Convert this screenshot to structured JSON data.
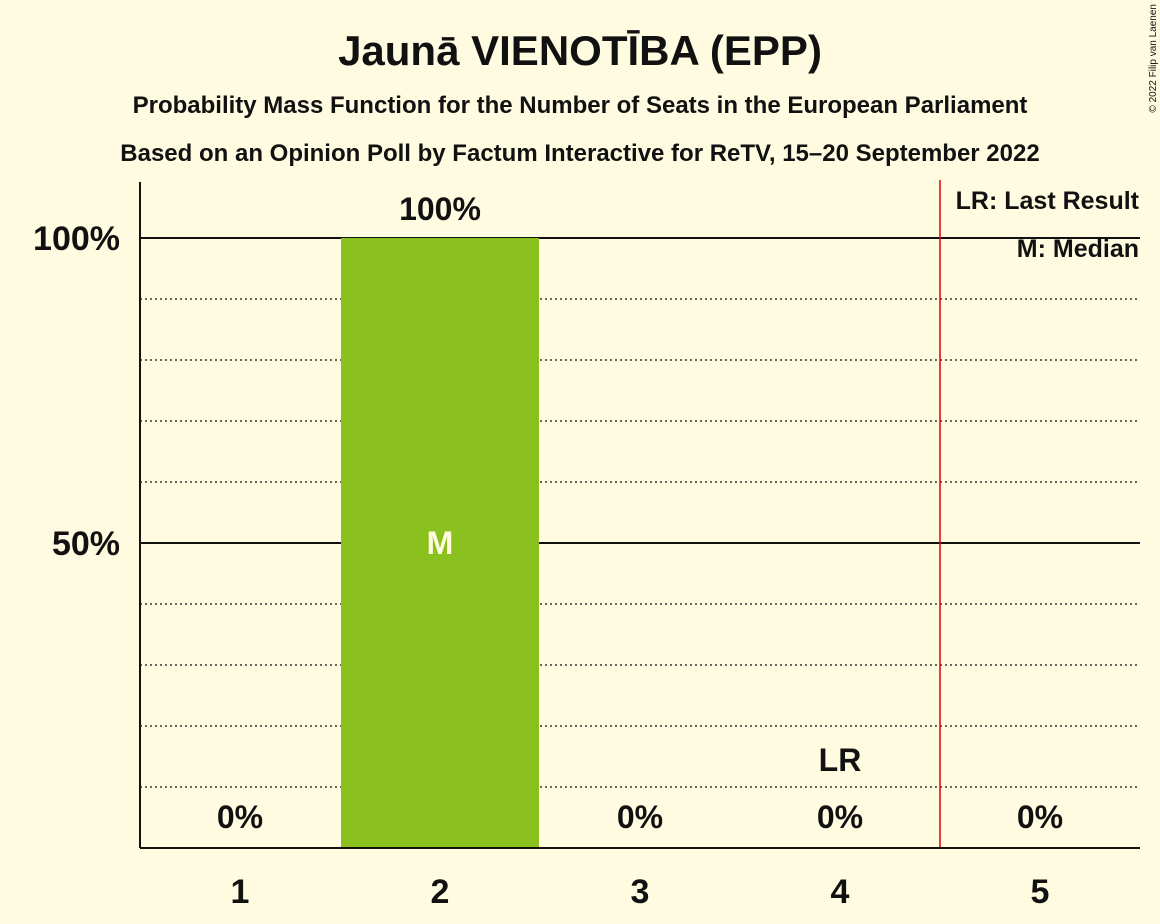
{
  "colors": {
    "background": "#FFFBE0",
    "bar": "#8BC11F",
    "last_result_line": "#DD0000",
    "text": "#111111"
  },
  "chart_data": {
    "type": "bar",
    "title": "Jaunā VIENOTĪBA (EPP)",
    "subtitle_1": "Probability Mass Function for the Number of Seats in the European Parliament",
    "subtitle_2": "Based on an Opinion Poll by Factum Interactive for ReTV, 15–20 September 2022",
    "categories": [
      "1",
      "2",
      "3",
      "4",
      "5"
    ],
    "values": [
      0,
      100,
      0,
      0,
      0
    ],
    "value_labels": [
      "0%",
      "100%",
      "0%",
      "0%",
      "0%"
    ],
    "ylim": [
      0,
      100
    ],
    "y_ticks": [
      {
        "value": 50,
        "label": "50%"
      },
      {
        "value": 100,
        "label": "100%"
      }
    ],
    "y_minor_gridlines": [
      10,
      20,
      30,
      40,
      60,
      70,
      80,
      90
    ],
    "median": {
      "category": "2",
      "label": "M"
    },
    "last_result": {
      "category": "4",
      "label": "LR",
      "line_between": [
        "4",
        "5"
      ]
    },
    "legend": {
      "placement": "top-right",
      "items": [
        "LR: Last Result",
        "M: Median"
      ]
    },
    "grid": true
  },
  "copyright": "© 2022 Filip van Laenen"
}
